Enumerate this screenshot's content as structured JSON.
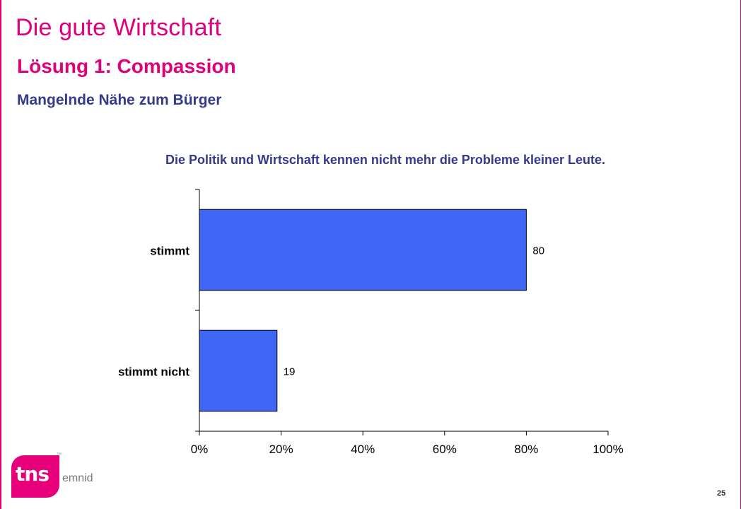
{
  "header": {
    "title": "Die gute Wirtschaft",
    "subtitle": "Lösung 1: Compassion",
    "section": "Mangelnde Nähe zum Bürger"
  },
  "chart_data": {
    "type": "bar",
    "orientation": "horizontal",
    "title": "Die Politik und Wirtschaft kennen nicht mehr die Probleme kleiner Leute.",
    "categories": [
      "stimmt",
      "stimmt nicht"
    ],
    "values": [
      80,
      19
    ],
    "data_labels": [
      "80",
      "19"
    ],
    "xlim": [
      0,
      100
    ],
    "x_ticks": [
      0,
      20,
      40,
      60,
      80,
      100
    ],
    "x_tick_labels": [
      "0%",
      "20%",
      "40%",
      "60%",
      "80%",
      "100%"
    ],
    "bar_color": "#3f66f5",
    "grid": false,
    "legend": "none"
  },
  "logo": {
    "mark": "tns",
    "trademark": "™",
    "sub": "emnid",
    "color": "#e8007a"
  },
  "footer": {
    "page_number": "25"
  }
}
